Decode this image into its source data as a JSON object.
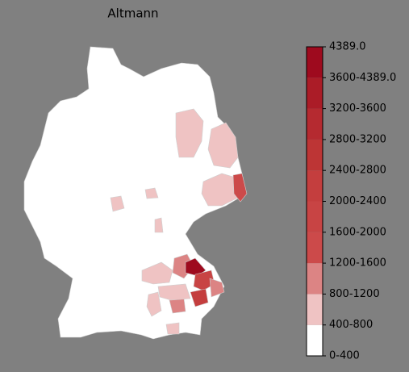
{
  "title": "Altmann",
  "legend": {
    "labels": [
      "0-400",
      "400-800",
      "800-1200",
      "1200-1600",
      "1600-2000",
      "2000-2400",
      "2400-2800",
      "2800-3200",
      "3200-3600",
      "3600-4389.0",
      "4389.0"
    ],
    "colors": [
      "#ffffff",
      "#efc3c3",
      "#dc8484",
      "#cc4a4a",
      "#c84444",
      "#c43e3e",
      "#bd3535",
      "#b52a30",
      "#ab1c27",
      "#9e0a1e"
    ]
  }
}
